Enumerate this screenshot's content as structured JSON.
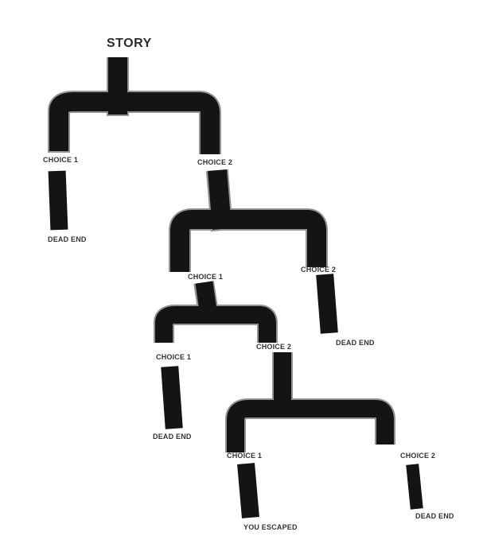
{
  "diagram": {
    "title": "STORY",
    "nodes": {
      "level1_choice1": "CHOICE 1",
      "level1_choice2": "CHOICE 2",
      "level1_result1": "DEAD END",
      "level2_choice1": "CHOICE 1",
      "level2_choice2": "CHOICE 2",
      "level2_result2": "DEAD END",
      "level3_choice1": "CHOICE 1",
      "level3_choice2": "CHOICE 2",
      "level3_result1": "DEAD END",
      "level4_choice1": "CHOICE 1",
      "level4_choice2": "CHOICE 2",
      "level4_result1": "YOU ESCAPED",
      "level4_result2": "DEAD END"
    },
    "colors": {
      "stroke": "#141414",
      "text": "#333333"
    }
  }
}
